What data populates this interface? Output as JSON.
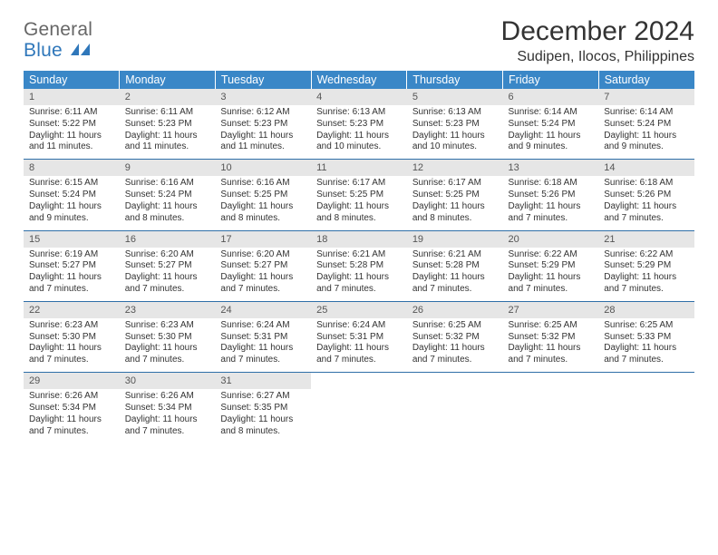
{
  "logo": {
    "line1": "General",
    "line2": "Blue"
  },
  "title": "December 2024",
  "location": "Sudipen, Ilocos, Philippines",
  "colors": {
    "header_bg": "#3a87c7",
    "header_fg": "#ffffff",
    "daynum_bg": "#e6e6e6",
    "row_divider": "#2f6fa8",
    "logo_gray": "#676767",
    "logo_blue": "#2f77ba",
    "text": "#333333",
    "page_bg": "#ffffff"
  },
  "weekdays": [
    "Sunday",
    "Monday",
    "Tuesday",
    "Wednesday",
    "Thursday",
    "Friday",
    "Saturday"
  ],
  "days": [
    {
      "n": 1,
      "sunrise": "6:11 AM",
      "sunset": "5:22 PM",
      "daylight": "11 hours and 11 minutes."
    },
    {
      "n": 2,
      "sunrise": "6:11 AM",
      "sunset": "5:23 PM",
      "daylight": "11 hours and 11 minutes."
    },
    {
      "n": 3,
      "sunrise": "6:12 AM",
      "sunset": "5:23 PM",
      "daylight": "11 hours and 11 minutes."
    },
    {
      "n": 4,
      "sunrise": "6:13 AM",
      "sunset": "5:23 PM",
      "daylight": "11 hours and 10 minutes."
    },
    {
      "n": 5,
      "sunrise": "6:13 AM",
      "sunset": "5:23 PM",
      "daylight": "11 hours and 10 minutes."
    },
    {
      "n": 6,
      "sunrise": "6:14 AM",
      "sunset": "5:24 PM",
      "daylight": "11 hours and 9 minutes."
    },
    {
      "n": 7,
      "sunrise": "6:14 AM",
      "sunset": "5:24 PM",
      "daylight": "11 hours and 9 minutes."
    },
    {
      "n": 8,
      "sunrise": "6:15 AM",
      "sunset": "5:24 PM",
      "daylight": "11 hours and 9 minutes."
    },
    {
      "n": 9,
      "sunrise": "6:16 AM",
      "sunset": "5:24 PM",
      "daylight": "11 hours and 8 minutes."
    },
    {
      "n": 10,
      "sunrise": "6:16 AM",
      "sunset": "5:25 PM",
      "daylight": "11 hours and 8 minutes."
    },
    {
      "n": 11,
      "sunrise": "6:17 AM",
      "sunset": "5:25 PM",
      "daylight": "11 hours and 8 minutes."
    },
    {
      "n": 12,
      "sunrise": "6:17 AM",
      "sunset": "5:25 PM",
      "daylight": "11 hours and 8 minutes."
    },
    {
      "n": 13,
      "sunrise": "6:18 AM",
      "sunset": "5:26 PM",
      "daylight": "11 hours and 7 minutes."
    },
    {
      "n": 14,
      "sunrise": "6:18 AM",
      "sunset": "5:26 PM",
      "daylight": "11 hours and 7 minutes."
    },
    {
      "n": 15,
      "sunrise": "6:19 AM",
      "sunset": "5:27 PM",
      "daylight": "11 hours and 7 minutes."
    },
    {
      "n": 16,
      "sunrise": "6:20 AM",
      "sunset": "5:27 PM",
      "daylight": "11 hours and 7 minutes."
    },
    {
      "n": 17,
      "sunrise": "6:20 AM",
      "sunset": "5:27 PM",
      "daylight": "11 hours and 7 minutes."
    },
    {
      "n": 18,
      "sunrise": "6:21 AM",
      "sunset": "5:28 PM",
      "daylight": "11 hours and 7 minutes."
    },
    {
      "n": 19,
      "sunrise": "6:21 AM",
      "sunset": "5:28 PM",
      "daylight": "11 hours and 7 minutes."
    },
    {
      "n": 20,
      "sunrise": "6:22 AM",
      "sunset": "5:29 PM",
      "daylight": "11 hours and 7 minutes."
    },
    {
      "n": 21,
      "sunrise": "6:22 AM",
      "sunset": "5:29 PM",
      "daylight": "11 hours and 7 minutes."
    },
    {
      "n": 22,
      "sunrise": "6:23 AM",
      "sunset": "5:30 PM",
      "daylight": "11 hours and 7 minutes."
    },
    {
      "n": 23,
      "sunrise": "6:23 AM",
      "sunset": "5:30 PM",
      "daylight": "11 hours and 7 minutes."
    },
    {
      "n": 24,
      "sunrise": "6:24 AM",
      "sunset": "5:31 PM",
      "daylight": "11 hours and 7 minutes."
    },
    {
      "n": 25,
      "sunrise": "6:24 AM",
      "sunset": "5:31 PM",
      "daylight": "11 hours and 7 minutes."
    },
    {
      "n": 26,
      "sunrise": "6:25 AM",
      "sunset": "5:32 PM",
      "daylight": "11 hours and 7 minutes."
    },
    {
      "n": 27,
      "sunrise": "6:25 AM",
      "sunset": "5:32 PM",
      "daylight": "11 hours and 7 minutes."
    },
    {
      "n": 28,
      "sunrise": "6:25 AM",
      "sunset": "5:33 PM",
      "daylight": "11 hours and 7 minutes."
    },
    {
      "n": 29,
      "sunrise": "6:26 AM",
      "sunset": "5:34 PM",
      "daylight": "11 hours and 7 minutes."
    },
    {
      "n": 30,
      "sunrise": "6:26 AM",
      "sunset": "5:34 PM",
      "daylight": "11 hours and 7 minutes."
    },
    {
      "n": 31,
      "sunrise": "6:27 AM",
      "sunset": "5:35 PM",
      "daylight": "11 hours and 8 minutes."
    }
  ],
  "labels": {
    "sunrise": "Sunrise:",
    "sunset": "Sunset:",
    "daylight": "Daylight:"
  },
  "layout": {
    "start_weekday": 0,
    "total_days": 31,
    "columns": 7,
    "font_family": "Arial"
  }
}
